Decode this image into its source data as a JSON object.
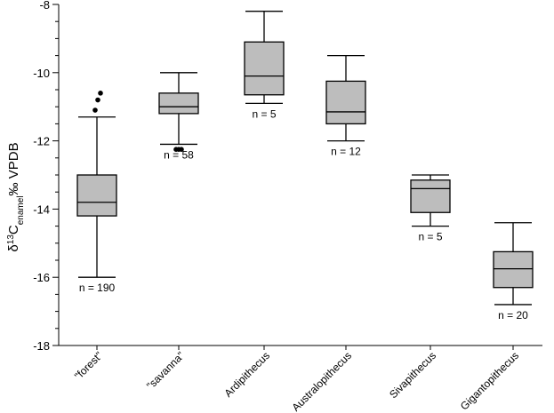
{
  "chart_data": {
    "type": "box",
    "ylabel": {
      "prefix": "δ",
      "sup": "13",
      "main": "C",
      "sub": "enamel",
      "suffix": "‰ VPDB"
    },
    "ylim": [
      -18,
      -8
    ],
    "yticks": [
      -8,
      -10,
      -12,
      -14,
      -16,
      -18
    ],
    "grid": false,
    "categories": [
      "\"forest\"",
      "\"savanna\"",
      "Ardipithecus",
      "Australopithecus",
      "Sivapithecus",
      "Gigantopithecus"
    ],
    "boxes": [
      {
        "category": "\"forest\"",
        "n_label": "n = 190",
        "whisker_low": -16.0,
        "q1": -14.2,
        "median": -13.8,
        "q3": -13.0,
        "whisker_high": -11.3,
        "outliers": [
          -10.6,
          -10.8,
          -11.1
        ]
      },
      {
        "category": "\"savanna\"",
        "n_label": "n = 58",
        "whisker_low": -12.1,
        "q1": -11.2,
        "median": -11.0,
        "q3": -10.6,
        "whisker_high": -10.0,
        "outliers": [
          -12.25,
          -12.25,
          -12.25
        ]
      },
      {
        "category": "Ardipithecus",
        "n_label": "n = 5",
        "whisker_low": -10.9,
        "q1": -10.65,
        "median": -10.1,
        "q3": -9.1,
        "whisker_high": -8.2,
        "outliers": []
      },
      {
        "category": "Australopithecus",
        "n_label": "n = 12",
        "whisker_low": -12.0,
        "q1": -11.5,
        "median": -11.15,
        "q3": -10.25,
        "whisker_high": -9.5,
        "outliers": []
      },
      {
        "category": "Sivapithecus",
        "n_label": "n = 5",
        "whisker_low": -14.5,
        "q1": -14.1,
        "median": -13.4,
        "q3": -13.15,
        "whisker_high": -13.0,
        "outliers": []
      },
      {
        "category": "Gigantopithecus",
        "n_label": "n = 20",
        "whisker_low": -16.8,
        "q1": -16.3,
        "median": -15.75,
        "q3": -15.25,
        "whisker_high": -14.4,
        "outliers": []
      }
    ],
    "colors": {
      "box_fill": "#bdbdbd",
      "stroke": "#000000"
    }
  }
}
